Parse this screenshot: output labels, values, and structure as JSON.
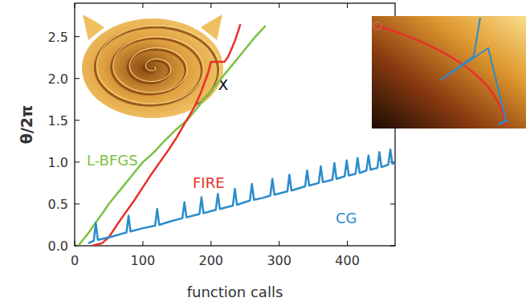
{
  "chart_data": {
    "type": "line",
    "x_label": "function calls",
    "y_label": "θ/2π",
    "xlim": [
      0,
      470
    ],
    "ylim": [
      0,
      2.9
    ],
    "xticks": [
      0,
      100,
      200,
      300,
      400
    ],
    "yticks": [
      {
        "value": 0,
        "label": "0.0"
      },
      {
        "value": 0.5,
        "label": "0.5"
      },
      {
        "value": 1,
        "label": "1.0"
      },
      {
        "value": 1.5,
        "label": "1.5"
      },
      {
        "value": 2,
        "label": "2.0"
      },
      {
        "value": 2.5,
        "label": "2.5"
      }
    ],
    "grid": false,
    "annotations": [
      {
        "text": "X"
      }
    ],
    "series": [
      {
        "name": "L-BFGS",
        "color": "#7cc142",
        "x": [
          5,
          12,
          20,
          30,
          40,
          50,
          60,
          70,
          80,
          90,
          100,
          110,
          120,
          130,
          140,
          150,
          165,
          180,
          190,
          200,
          210,
          220,
          230,
          240,
          250,
          258,
          265,
          272,
          280
        ],
        "values": [
          0,
          0.07,
          0.15,
          0.27,
          0.38,
          0.5,
          0.6,
          0.7,
          0.8,
          0.9,
          1.0,
          1.07,
          1.15,
          1.24,
          1.32,
          1.4,
          1.5,
          1.65,
          1.75,
          1.85,
          1.95,
          2.05,
          2.15,
          2.25,
          2.35,
          2.43,
          2.5,
          2.56,
          2.63
        ]
      },
      {
        "name": "FIRE",
        "color": "#e8302a",
        "x": [
          25,
          40,
          50,
          62,
          75,
          88,
          100,
          112,
          125,
          138,
          150,
          162,
          175,
          185,
          195,
          200,
          210,
          220,
          225,
          230,
          235,
          240,
          243
        ],
        "values": [
          0,
          0.03,
          0.1,
          0.25,
          0.4,
          0.55,
          0.7,
          0.85,
          1.0,
          1.15,
          1.3,
          1.47,
          1.65,
          1.83,
          2.05,
          2.2,
          2.2,
          2.2,
          2.26,
          2.35,
          2.45,
          2.57,
          2.65
        ]
      },
      {
        "name": "CG",
        "color": "#2a8ccc",
        "x": [
          20,
          28,
          31,
          34,
          55,
          76,
          79,
          82,
          100,
          118,
          121,
          124,
          140,
          158,
          161,
          164,
          183,
          186,
          189,
          207,
          210,
          213,
          232,
          235,
          238,
          257,
          260,
          263,
          275,
          287,
          290,
          293,
          312,
          315,
          318,
          338,
          341,
          344,
          358,
          361,
          364,
          378,
          381,
          384,
          396,
          399,
          402,
          412,
          415,
          418,
          428,
          431,
          434,
          444,
          447,
          450,
          460,
          463,
          466,
          470
        ],
        "values": [
          0.03,
          0.06,
          0.27,
          0.07,
          0.11,
          0.16,
          0.36,
          0.17,
          0.21,
          0.24,
          0.44,
          0.25,
          0.29,
          0.33,
          0.52,
          0.34,
          0.38,
          0.58,
          0.39,
          0.43,
          0.62,
          0.44,
          0.48,
          0.68,
          0.49,
          0.54,
          0.74,
          0.55,
          0.57,
          0.6,
          0.8,
          0.61,
          0.65,
          0.85,
          0.66,
          0.71,
          0.9,
          0.72,
          0.75,
          0.95,
          0.76,
          0.79,
          0.99,
          0.8,
          0.83,
          1.02,
          0.84,
          0.86,
          1.05,
          0.87,
          0.9,
          1.08,
          0.91,
          0.93,
          1.12,
          0.94,
          0.97,
          1.15,
          0.98,
          0.99
        ]
      }
    ]
  }
}
